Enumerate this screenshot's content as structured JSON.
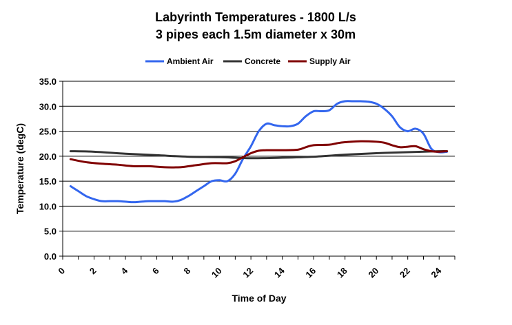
{
  "chart_data": {
    "type": "line",
    "title": "Labyrinth Temperatures - 1800 L/s",
    "subtitle": "3 pipes each 1.5m diameter x 30m",
    "xlabel": "Time of Day",
    "ylabel": "Temperature (degC)",
    "xlim": [
      0,
      25
    ],
    "ylim": [
      0,
      35
    ],
    "x_ticks": [
      "0",
      "2",
      "4",
      "6",
      "8",
      "10",
      "12",
      "14",
      "16",
      "18",
      "20",
      "22",
      "24"
    ],
    "y_ticks": [
      "0.0",
      "5.0",
      "10.0",
      "15.0",
      "20.0",
      "25.0",
      "30.0",
      "35.0"
    ],
    "grid": "horizontal",
    "legend_position": "top",
    "series": [
      {
        "name": "Ambient Air",
        "color": "#3366ee",
        "points": [
          [
            0.5,
            14.0
          ],
          [
            1,
            13.0
          ],
          [
            1.5,
            12.0
          ],
          [
            2,
            11.4
          ],
          [
            2.5,
            11.0
          ],
          [
            3,
            11.0
          ],
          [
            3.5,
            11.0
          ],
          [
            4,
            10.9
          ],
          [
            4.5,
            10.8
          ],
          [
            5,
            10.9
          ],
          [
            5.5,
            11.0
          ],
          [
            6,
            11.0
          ],
          [
            6.5,
            11.0
          ],
          [
            7,
            10.9
          ],
          [
            7.5,
            11.2
          ],
          [
            8,
            12.0
          ],
          [
            8.5,
            13.0
          ],
          [
            9,
            14.0
          ],
          [
            9.5,
            15.0
          ],
          [
            10,
            15.2
          ],
          [
            10.5,
            15.0
          ],
          [
            11,
            16.5
          ],
          [
            11.5,
            19.5
          ],
          [
            12,
            22.0
          ],
          [
            12.5,
            25.0
          ],
          [
            13,
            26.5
          ],
          [
            13.5,
            26.2
          ],
          [
            14,
            26.0
          ],
          [
            14.5,
            26.0
          ],
          [
            15,
            26.5
          ],
          [
            15.5,
            28.0
          ],
          [
            16,
            29.0
          ],
          [
            16.5,
            29.0
          ],
          [
            17,
            29.2
          ],
          [
            17.5,
            30.5
          ],
          [
            18,
            31.0
          ],
          [
            18.5,
            31.0
          ],
          [
            19,
            31.0
          ],
          [
            19.5,
            30.9
          ],
          [
            20,
            30.5
          ],
          [
            20.5,
            29.5
          ],
          [
            21,
            28.0
          ],
          [
            21.5,
            25.8
          ],
          [
            22,
            25.0
          ],
          [
            22.5,
            25.5
          ],
          [
            23,
            24.5
          ],
          [
            23.5,
            21.5
          ],
          [
            24,
            20.8
          ],
          [
            24.5,
            20.9
          ]
        ]
      },
      {
        "name": "Concrete",
        "color": "#333333",
        "points": [
          [
            0.5,
            21.0
          ],
          [
            2,
            20.9
          ],
          [
            4,
            20.5
          ],
          [
            6,
            20.2
          ],
          [
            8,
            19.9
          ],
          [
            10,
            19.8
          ],
          [
            12,
            19.6
          ],
          [
            14,
            19.7
          ],
          [
            16,
            19.9
          ],
          [
            18,
            20.3
          ],
          [
            20,
            20.6
          ],
          [
            22,
            20.8
          ],
          [
            24,
            21.0
          ],
          [
            24.5,
            21.0
          ]
        ]
      },
      {
        "name": "Supply Air",
        "color": "#800000",
        "points": [
          [
            0.5,
            19.4
          ],
          [
            1.5,
            18.8
          ],
          [
            2.5,
            18.5
          ],
          [
            3.5,
            18.3
          ],
          [
            4.5,
            18.0
          ],
          [
            5.5,
            18.0
          ],
          [
            6.5,
            17.8
          ],
          [
            7.5,
            17.8
          ],
          [
            8.5,
            18.2
          ],
          [
            9.5,
            18.6
          ],
          [
            10.5,
            18.6
          ],
          [
            11,
            19.0
          ],
          [
            11.5,
            19.8
          ],
          [
            12,
            20.6
          ],
          [
            12.5,
            21.1
          ],
          [
            13,
            21.2
          ],
          [
            14,
            21.2
          ],
          [
            15,
            21.3
          ],
          [
            15.5,
            21.8
          ],
          [
            16,
            22.2
          ],
          [
            17,
            22.3
          ],
          [
            17.5,
            22.6
          ],
          [
            18,
            22.8
          ],
          [
            19,
            23.0
          ],
          [
            20,
            22.9
          ],
          [
            20.5,
            22.7
          ],
          [
            21,
            22.2
          ],
          [
            21.5,
            21.8
          ],
          [
            22,
            21.9
          ],
          [
            22.5,
            22.0
          ],
          [
            23,
            21.4
          ],
          [
            23.5,
            21.0
          ],
          [
            24,
            20.9
          ],
          [
            24.5,
            21.0
          ]
        ]
      }
    ]
  }
}
